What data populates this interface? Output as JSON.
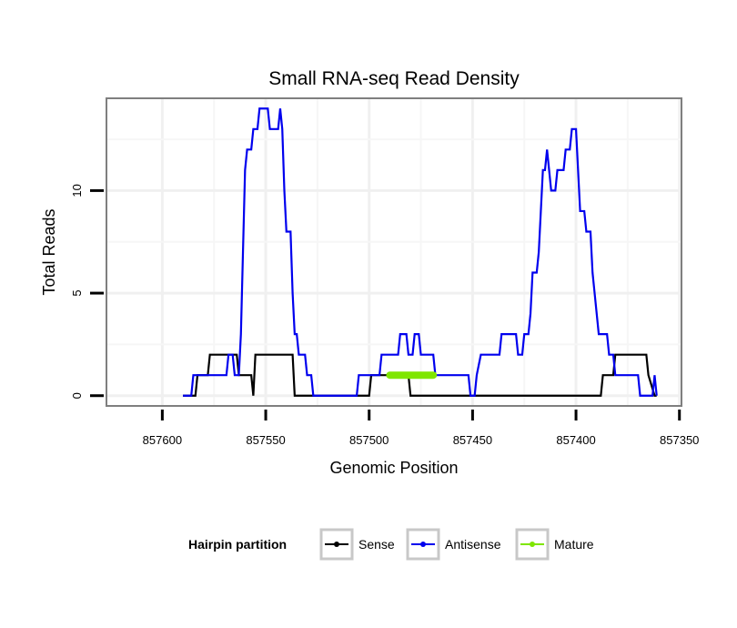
{
  "chart_data": {
    "type": "line",
    "title": "Small RNA-seq Read Density",
    "xlabel": "Genomic Position",
    "ylabel": "Total Reads",
    "x_reversed": true,
    "xlim": [
      857627,
      857349
    ],
    "ylim": [
      -0.5,
      14.5
    ],
    "xticks": [
      857600,
      857550,
      857500,
      857450,
      857400,
      857350
    ],
    "xtick_labels": [
      "857600",
      "857550",
      "857500",
      "857450",
      "857400",
      "857350"
    ],
    "yticks": [
      0,
      5,
      10
    ],
    "ytick_labels": [
      "0",
      "5",
      "10"
    ],
    "grid": true,
    "legend": {
      "title": "Hairpin partition",
      "position": "bottom",
      "entries": [
        "Sense",
        "Antisense",
        "Mature"
      ]
    },
    "series": [
      {
        "name": "Sense",
        "color": "#000000",
        "points": [
          [
            857590,
            0
          ],
          [
            857584,
            0
          ],
          [
            857583,
            1
          ],
          [
            857578,
            1
          ],
          [
            857577,
            2
          ],
          [
            857564,
            2
          ],
          [
            857563,
            1
          ],
          [
            857557,
            1
          ],
          [
            857556,
            0
          ],
          [
            857555,
            2
          ],
          [
            857537,
            2
          ],
          [
            857536,
            0
          ],
          [
            857504,
            0
          ],
          [
            857503,
            0
          ],
          [
            857500,
            0
          ],
          [
            857499,
            1
          ],
          [
            857489,
            1
          ],
          [
            857488,
            1
          ],
          [
            857481,
            1
          ],
          [
            857480,
            0
          ],
          [
            857449,
            0
          ],
          [
            857448,
            0
          ],
          [
            857401,
            0
          ],
          [
            857388,
            0
          ],
          [
            857387,
            1
          ],
          [
            857382,
            1
          ],
          [
            857381,
            2
          ],
          [
            857366,
            2
          ],
          [
            857365,
            1
          ],
          [
            857362,
            0
          ],
          [
            857361,
            0
          ]
        ]
      },
      {
        "name": "Antisense",
        "color": "#0000ee",
        "points": [
          [
            857590,
            0
          ],
          [
            857586,
            0
          ],
          [
            857585,
            1
          ],
          [
            857569,
            1
          ],
          [
            857568,
            2
          ],
          [
            857566,
            2
          ],
          [
            857565,
            1
          ],
          [
            857563,
            1
          ],
          [
            857562,
            3
          ],
          [
            857561,
            7
          ],
          [
            857560,
            11
          ],
          [
            857559,
            12
          ],
          [
            857557,
            12
          ],
          [
            857556,
            13
          ],
          [
            857554,
            13
          ],
          [
            857553,
            14
          ],
          [
            857549,
            14
          ],
          [
            857548,
            13
          ],
          [
            857544,
            13
          ],
          [
            857543,
            14
          ],
          [
            857542,
            13
          ],
          [
            857541,
            10
          ],
          [
            857540,
            8
          ],
          [
            857538,
            8
          ],
          [
            857537,
            5
          ],
          [
            857536,
            3
          ],
          [
            857535,
            3
          ],
          [
            857534,
            2
          ],
          [
            857531,
            2
          ],
          [
            857530,
            1
          ],
          [
            857528,
            1
          ],
          [
            857527,
            0
          ],
          [
            857518,
            0
          ],
          [
            857506,
            0
          ],
          [
            857505,
            1
          ],
          [
            857495,
            1
          ],
          [
            857494,
            2
          ],
          [
            857486,
            2
          ],
          [
            857485,
            3
          ],
          [
            857482,
            3
          ],
          [
            857481,
            2
          ],
          [
            857479,
            2
          ],
          [
            857478,
            3
          ],
          [
            857476,
            3
          ],
          [
            857475,
            2
          ],
          [
            857469,
            2
          ],
          [
            857468,
            1
          ],
          [
            857453,
            1
          ],
          [
            857452,
            1
          ],
          [
            857451,
            0
          ],
          [
            857449,
            0
          ],
          [
            857448,
            1
          ],
          [
            857446,
            2
          ],
          [
            857437,
            2
          ],
          [
            857436,
            3
          ],
          [
            857429,
            3
          ],
          [
            857428,
            2
          ],
          [
            857426,
            2
          ],
          [
            857425,
            3
          ],
          [
            857423,
            3
          ],
          [
            857422,
            4
          ],
          [
            857421,
            6
          ],
          [
            857419,
            6
          ],
          [
            857418,
            7
          ],
          [
            857417,
            9
          ],
          [
            857416,
            11
          ],
          [
            857415,
            11
          ],
          [
            857414,
            12
          ],
          [
            857413,
            11
          ],
          [
            857412,
            10
          ],
          [
            857410,
            10
          ],
          [
            857409,
            11
          ],
          [
            857406,
            11
          ],
          [
            857405,
            12
          ],
          [
            857403,
            12
          ],
          [
            857402,
            13
          ],
          [
            857400,
            13
          ],
          [
            857399,
            11
          ],
          [
            857398,
            9
          ],
          [
            857396,
            9
          ],
          [
            857395,
            8
          ],
          [
            857393,
            8
          ],
          [
            857392,
            6
          ],
          [
            857391,
            5
          ],
          [
            857390,
            4
          ],
          [
            857389,
            3
          ],
          [
            857385,
            3
          ],
          [
            857384,
            2
          ],
          [
            857382,
            2
          ],
          [
            857381,
            1
          ],
          [
            857370,
            1
          ],
          [
            857369,
            0
          ],
          [
            857363,
            0
          ],
          [
            857362,
            1
          ],
          [
            857361,
            0
          ]
        ]
      },
      {
        "name": "Mature",
        "color": "#7fe600",
        "points": [
          [
            857490,
            1
          ],
          [
            857469,
            1
          ]
        ]
      }
    ]
  }
}
